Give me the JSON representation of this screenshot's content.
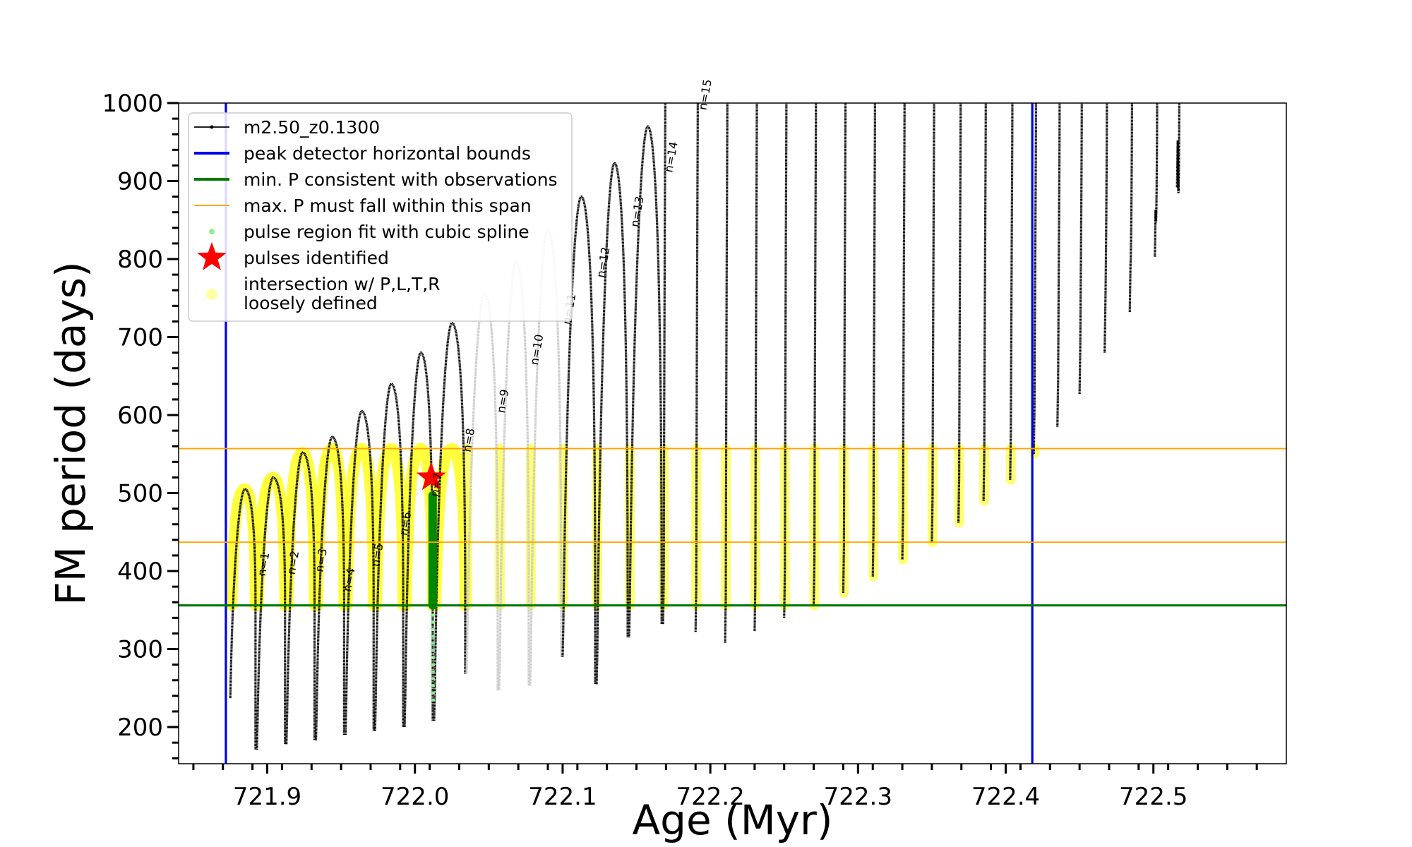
{
  "chart_data": {
    "type": "line",
    "title": "",
    "xlabel": "Age (Myr)",
    "ylabel": "FM period (days)",
    "xlim": [
      721.84,
      722.59
    ],
    "ylim": [
      153,
      1000
    ],
    "xticks": [
      721.9,
      722.0,
      722.1,
      722.2,
      722.3,
      722.4,
      722.5
    ],
    "xtick_labels": [
      "721.9",
      "722.0",
      "722.1",
      "722.2",
      "722.3",
      "722.4",
      "722.5"
    ],
    "yticks": [
      200,
      300,
      400,
      500,
      600,
      700,
      800,
      900,
      1000
    ],
    "ytick_labels": [
      "200",
      "300",
      "400",
      "500",
      "600",
      "700",
      "800",
      "900",
      "1000"
    ],
    "legend_position": "top-left",
    "legend": [
      {
        "key": "track",
        "label": "m2.50_z0.1300",
        "marker": "line-dot",
        "color": "#000000"
      },
      {
        "key": "bounds",
        "label": "peak detector horizontal bounds",
        "marker": "line",
        "color": "#0000ee"
      },
      {
        "key": "minp",
        "label": "min. P consistent with observations",
        "marker": "line",
        "color": "#007a00"
      },
      {
        "key": "maxp",
        "label": "max. P must fall within this span",
        "marker": "thin-line",
        "color": "#ffa500"
      },
      {
        "key": "spline",
        "label": "pulse region fit with cubic spline",
        "marker": "dot",
        "color": "#90ee90"
      },
      {
        "key": "pulses",
        "label": "pulses identified",
        "marker": "star",
        "color": "#ff0000"
      },
      {
        "key": "intersect",
        "label": "intersection w/ P,L,T,R loosely defined",
        "label_lines": [
          "intersection w/ P,L,T,R",
          "loosely defined"
        ],
        "marker": "circle",
        "color": "#ffff66"
      }
    ],
    "reference_lines": {
      "vertical_bounds": [
        721.872,
        722.418
      ],
      "min_period": 356,
      "max_period_span": [
        437,
        557
      ]
    },
    "series": [
      {
        "name": "m2.50_z0.1300",
        "color": "#000000",
        "pulses": [
          {
            "age": 721.875,
            "min": 237,
            "peak": 505
          },
          {
            "age": 721.893,
            "min": 171,
            "peak": 520
          },
          {
            "age": 721.913,
            "min": 178,
            "peak": 552
          },
          {
            "age": 721.933,
            "min": 183,
            "peak": 572
          },
          {
            "age": 721.953,
            "min": 190,
            "peak": 605
          },
          {
            "age": 721.973,
            "min": 195,
            "peak": 640
          },
          {
            "age": 721.993,
            "min": 200,
            "peak": 680
          },
          {
            "age": 722.013,
            "min": 208,
            "peak": 718
          },
          {
            "age": 722.035,
            "min": 268,
            "peak": 755,
            "faded": true
          },
          {
            "age": 722.057,
            "min": 247,
            "peak": 797,
            "faded": true
          },
          {
            "age": 722.078,
            "min": 253,
            "peak": 838,
            "faded": true
          },
          {
            "age": 722.1,
            "min": 290,
            "peak": 880
          },
          {
            "age": 722.123,
            "min": 255,
            "peak": 923
          },
          {
            "age": 722.145,
            "min": 315,
            "peak": 970
          },
          {
            "age": 722.168,
            "min": 332,
            "peak": 1000
          },
          {
            "age": 722.19,
            "min": 322,
            "peak": 1000
          },
          {
            "age": 722.21,
            "min": 308,
            "peak": 1000
          },
          {
            "age": 722.23,
            "min": 323,
            "peak": 1000
          },
          {
            "age": 722.25,
            "min": 340,
            "peak": 1000
          },
          {
            "age": 722.27,
            "min": 355,
            "peak": 1000
          },
          {
            "age": 722.29,
            "min": 372,
            "peak": 1000
          },
          {
            "age": 722.31,
            "min": 393,
            "peak": 1000
          },
          {
            "age": 722.33,
            "min": 415,
            "peak": 1000
          },
          {
            "age": 722.35,
            "min": 437,
            "peak": 1000
          },
          {
            "age": 722.368,
            "min": 462,
            "peak": 1000
          },
          {
            "age": 722.385,
            "min": 490,
            "peak": 1000
          },
          {
            "age": 722.403,
            "min": 517,
            "peak": 1000
          },
          {
            "age": 722.419,
            "min": 550,
            "peak": 1000
          },
          {
            "age": 722.435,
            "min": 585,
            "peak": 1000
          },
          {
            "age": 722.45,
            "min": 627,
            "peak": 1000
          },
          {
            "age": 722.467,
            "min": 680,
            "peak": 1000
          },
          {
            "age": 722.484,
            "min": 732,
            "peak": 1000
          },
          {
            "age": 722.501,
            "min": 803,
            "peak": 1000
          },
          {
            "age": 722.516,
            "min": 892,
            "peak": 1000
          }
        ]
      }
    ],
    "pulse_identified": {
      "age": 722.011,
      "period": 520
    },
    "spline_fit": {
      "age": 722.012,
      "period_range": [
        233,
        497
      ]
    },
    "pulse_labels": [
      {
        "text": "n=1",
        "age": 721.9,
        "period": 408
      },
      {
        "text": "n=2",
        "age": 721.92,
        "period": 410
      },
      {
        "text": "n=3",
        "age": 721.939,
        "period": 413
      },
      {
        "text": "n=4",
        "age": 721.958,
        "period": 388
      },
      {
        "text": "n=5",
        "age": 721.977,
        "period": 420
      },
      {
        "text": "n=6",
        "age": 721.996,
        "period": 460
      },
      {
        "text": "n=7",
        "age": 722.017,
        "period": 510
      },
      {
        "text": "n=8",
        "age": 722.039,
        "period": 567
      },
      {
        "text": "n=9",
        "age": 722.062,
        "period": 617
      },
      {
        "text": "n=10",
        "age": 722.085,
        "period": 683
      },
      {
        "text": "n=11",
        "age": 722.107,
        "period": 735
      },
      {
        "text": "n=12",
        "age": 722.13,
        "period": 795
      },
      {
        "text": "n=13",
        "age": 722.153,
        "period": 860
      },
      {
        "text": "n=14",
        "age": 722.176,
        "period": 930
      },
      {
        "text": "n=15",
        "age": 722.199,
        "period": 1010
      }
    ]
  }
}
